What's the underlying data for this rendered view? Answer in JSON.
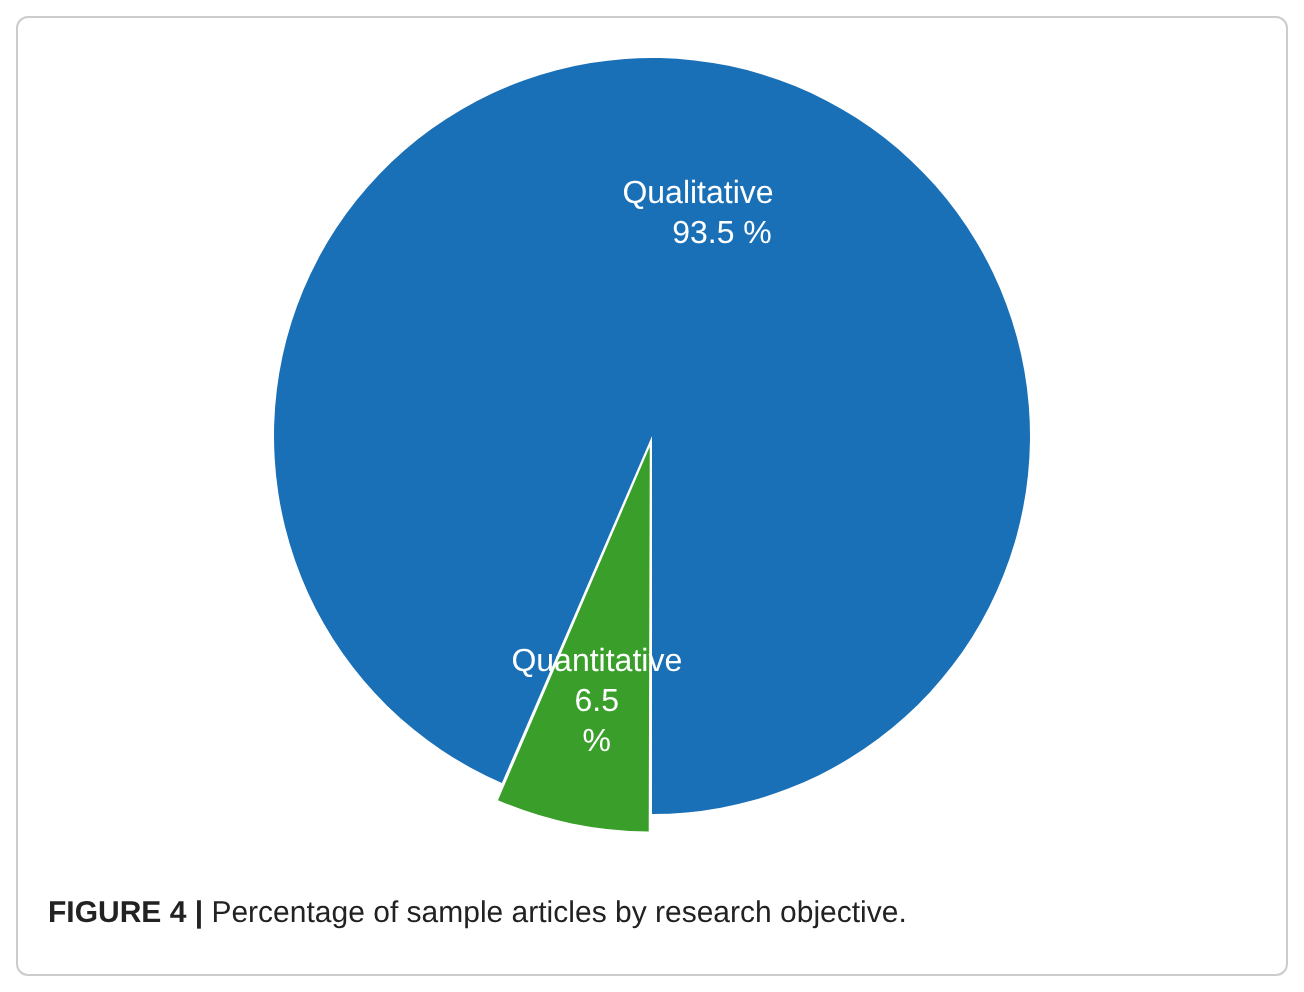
{
  "chart_data": {
    "type": "pie",
    "categories": [
      "Qualitative",
      "Quantitative"
    ],
    "values": [
      93.5,
      6.5
    ],
    "colors": [
      "#1a70b6",
      "#3a9e2a"
    ],
    "value_labels": [
      "93.5 %",
      "6.5 %"
    ],
    "legend": false,
    "annotations": [
      "FIGURE 4 | Percentage of sample articles by research objective."
    ]
  }
}
